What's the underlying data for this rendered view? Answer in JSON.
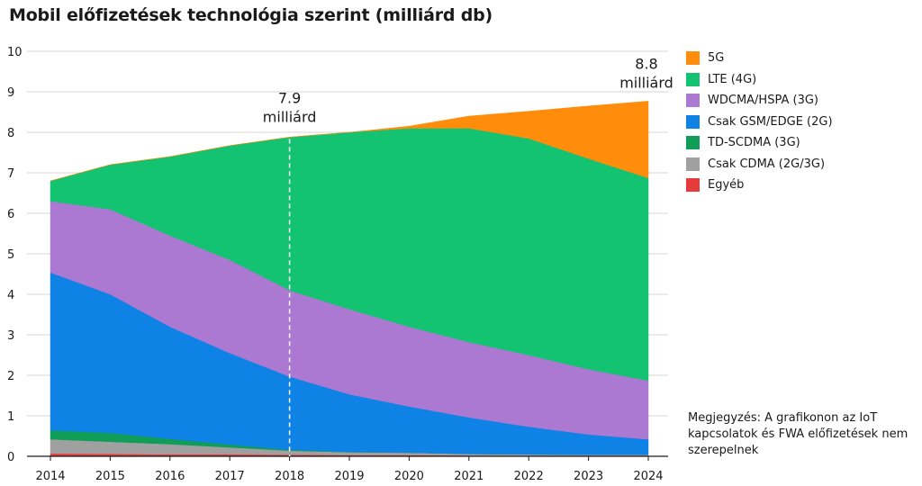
{
  "chart_data": {
    "type": "area",
    "stacked": true,
    "title": "Mobil előfizetések technológia szerint (milliárd db)",
    "xlabel": "",
    "ylabel": "",
    "x": [
      2014,
      2015,
      2016,
      2017,
      2018,
      2019,
      2020,
      2021,
      2022,
      2023,
      2024
    ],
    "x_labels": [
      "2014",
      "2015",
      "2016",
      "2017",
      "2018",
      "2019",
      "2020",
      "2021",
      "2022",
      "2023",
      "2024"
    ],
    "ylim": [
      0,
      10
    ],
    "y_ticks": [
      "0",
      "1",
      "2",
      "3",
      "4",
      "5",
      "6",
      "7",
      "8",
      "9",
      "10"
    ],
    "grid": true,
    "legend_position": "right",
    "series": [
      {
        "name": "Egyéb",
        "color": "#e63b3b",
        "values": [
          0.07,
          0.06,
          0.05,
          0.05,
          0.04,
          0.03,
          0.03,
          0.02,
          0.02,
          0.02,
          0.02
        ]
      },
      {
        "name": "Csak CDMA (2G/3G)",
        "color": "#a0a0a0",
        "values": [
          0.35,
          0.3,
          0.25,
          0.17,
          0.1,
          0.07,
          0.06,
          0.04,
          0.03,
          0.02,
          0.02
        ]
      },
      {
        "name": "TD-SCDMA (3G)",
        "color": "#0f9d58",
        "values": [
          0.22,
          0.22,
          0.13,
          0.07,
          0.02,
          0.01,
          0.0,
          0.0,
          0.0,
          0.0,
          0.0
        ]
      },
      {
        "name": "Csak GSM/EDGE (2G)",
        "color": "#0f82e6",
        "values": [
          3.9,
          3.42,
          2.77,
          2.26,
          1.81,
          1.42,
          1.14,
          0.9,
          0.68,
          0.5,
          0.38
        ]
      },
      {
        "name": "WDCMA/HSPA (3G)",
        "color": "#ab78d2",
        "values": [
          1.76,
          2.1,
          2.25,
          2.3,
          2.13,
          2.1,
          1.97,
          1.86,
          1.77,
          1.61,
          1.45
        ]
      },
      {
        "name": "LTE (4G)",
        "color": "#13c372",
        "values": [
          0.5,
          1.1,
          1.95,
          2.82,
          3.78,
          4.37,
          4.9,
          5.28,
          5.35,
          5.2,
          5.0
        ]
      },
      {
        "name": "5G",
        "color": "#ff8c0a",
        "values": [
          0.0,
          0.0,
          0.0,
          0.0,
          0.0,
          0.0,
          0.05,
          0.3,
          0.67,
          1.3,
          1.9
        ]
      }
    ],
    "legend_order": [
      "5G",
      "LTE (4G)",
      "WDCMA/HSPA (3G)",
      "Csak GSM/EDGE (2G)",
      "TD-SCDMA (3G)",
      "Csak CDMA (2G/3G)",
      "Egyéb"
    ],
    "annotations": [
      {
        "x": 2018,
        "y": 7.9,
        "value": "7.9",
        "unit": "milliárd",
        "marker_line": true
      },
      {
        "x": 2024,
        "y": 8.8,
        "value": "8.8",
        "unit": "milliárd",
        "marker_line": false
      }
    ]
  },
  "note": "Megjegyzés: A grafikonon az IoT kapcsolatok és FWA előfizetések nem szerepelnek"
}
